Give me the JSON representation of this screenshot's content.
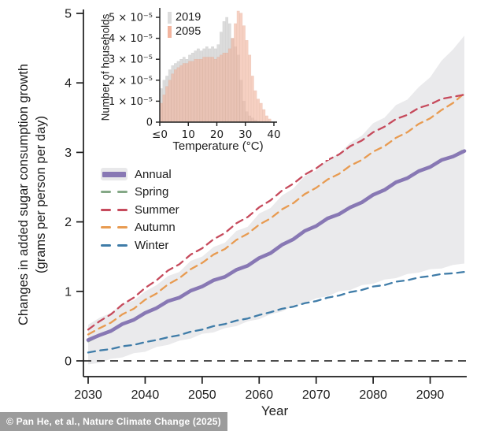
{
  "figure": {
    "credit": "© Pan He, et al., Nature Climate Change (2025)"
  },
  "chart_data": {
    "type": "line",
    "xlabel": "Year",
    "ylabel_line1": "Changes in added sugar consumption growth",
    "ylabel_line2": "(grams per person per day)",
    "x_ticks": [
      2030,
      2040,
      2050,
      2060,
      2070,
      2080,
      2090
    ],
    "y_ticks": [
      0,
      1,
      2,
      3,
      4,
      5
    ],
    "xlim": [
      2029,
      2096
    ],
    "ylim": [
      -0.25,
      5.1
    ],
    "zero_line": 0,
    "grid": false,
    "legend_position": "upper-left-inside",
    "years": [
      2030,
      2032,
      2034,
      2036,
      2038,
      2040,
      2042,
      2044,
      2046,
      2048,
      2050,
      2052,
      2054,
      2056,
      2058,
      2060,
      2062,
      2064,
      2066,
      2068,
      2070,
      2072,
      2074,
      2076,
      2078,
      2080,
      2082,
      2084,
      2086,
      2088,
      2090,
      2092,
      2094,
      2096
    ],
    "band": {
      "name": "Annual uncertainty range",
      "color": "#e8e8ea",
      "upper": [
        0.52,
        0.62,
        0.69,
        0.82,
        0.87,
        1.0,
        1.09,
        1.22,
        1.28,
        1.44,
        1.5,
        1.64,
        1.7,
        1.87,
        1.93,
        2.12,
        2.2,
        2.38,
        2.48,
        2.66,
        2.74,
        2.9,
        2.98,
        3.14,
        3.24,
        3.42,
        3.5,
        3.68,
        3.76,
        3.94,
        4.08,
        4.32,
        4.48,
        4.68
      ],
      "lower": [
        -0.05,
        -0.03,
        0.03,
        0.05,
        0.11,
        0.13,
        0.2,
        0.23,
        0.29,
        0.32,
        0.39,
        0.41,
        0.47,
        0.5,
        0.57,
        0.6,
        0.67,
        0.71,
        0.79,
        0.83,
        0.9,
        0.93,
        1.0,
        1.02,
        1.09,
        1.11,
        1.17,
        1.19,
        1.25,
        1.27,
        1.32,
        1.33,
        1.38,
        1.4
      ]
    },
    "series": [
      {
        "name": "Annual",
        "style": "solid",
        "color": "#8878b4",
        "values": [
          0.3,
          0.37,
          0.43,
          0.53,
          0.59,
          0.69,
          0.76,
          0.86,
          0.91,
          1.01,
          1.07,
          1.16,
          1.21,
          1.31,
          1.37,
          1.48,
          1.55,
          1.67,
          1.75,
          1.87,
          1.94,
          2.05,
          2.11,
          2.21,
          2.28,
          2.39,
          2.46,
          2.57,
          2.63,
          2.73,
          2.79,
          2.89,
          2.94,
          3.02
        ]
      },
      {
        "name": "Spring",
        "style": "dashed",
        "color": "#84a886",
        "values": [
          0.28,
          0.36,
          0.42,
          0.52,
          0.58,
          0.68,
          0.75,
          0.85,
          0.9,
          1.0,
          1.06,
          1.15,
          1.2,
          1.3,
          1.36,
          1.47,
          1.54,
          1.66,
          1.74,
          1.86,
          1.93,
          2.04,
          2.1,
          2.2,
          2.27,
          2.38,
          2.45,
          2.56,
          2.62,
          2.72,
          2.78,
          2.88,
          2.95,
          3.04
        ]
      },
      {
        "name": "Summer",
        "style": "dashed",
        "color": "#c64a5c",
        "values": [
          0.45,
          0.57,
          0.67,
          0.81,
          0.91,
          1.05,
          1.16,
          1.3,
          1.39,
          1.53,
          1.62,
          1.75,
          1.84,
          1.98,
          2.07,
          2.21,
          2.31,
          2.45,
          2.55,
          2.68,
          2.77,
          2.89,
          2.97,
          3.09,
          3.17,
          3.29,
          3.37,
          3.48,
          3.54,
          3.64,
          3.69,
          3.77,
          3.8,
          3.83
        ]
      },
      {
        "name": "Autumn",
        "style": "dashed",
        "color": "#e89b51",
        "values": [
          0.38,
          0.47,
          0.55,
          0.67,
          0.75,
          0.88,
          0.97,
          1.1,
          1.19,
          1.32,
          1.41,
          1.53,
          1.61,
          1.74,
          1.83,
          1.96,
          2.05,
          2.18,
          2.27,
          2.4,
          2.49,
          2.61,
          2.69,
          2.81,
          2.89,
          3.01,
          3.09,
          3.21,
          3.29,
          3.41,
          3.49,
          3.61,
          3.71,
          3.85
        ]
      },
      {
        "name": "Winter",
        "style": "dashed",
        "color": "#3f7ca8",
        "values": [
          0.12,
          0.15,
          0.17,
          0.21,
          0.23,
          0.27,
          0.3,
          0.34,
          0.37,
          0.42,
          0.45,
          0.5,
          0.53,
          0.58,
          0.61,
          0.66,
          0.7,
          0.75,
          0.78,
          0.83,
          0.86,
          0.91,
          0.94,
          0.99,
          1.02,
          1.07,
          1.09,
          1.14,
          1.16,
          1.2,
          1.22,
          1.25,
          1.26,
          1.28
        ]
      }
    ],
    "inset": {
      "type": "bar",
      "xlabel": "Temperature (°C)",
      "ylabel": "Number of households",
      "x_tick_values": [
        0,
        10,
        20,
        30,
        40
      ],
      "x_tick_labels": [
        "≤0",
        "10",
        "20",
        "30",
        "40"
      ],
      "y_tick_values": [
        0,
        1,
        2,
        3,
        4,
        5
      ],
      "y_tick_labels": [
        "0",
        "1 × 10⁻⁵",
        "2 × 10⁻⁵",
        "3 × 10⁻⁵",
        "4 × 10⁻⁵",
        "5 × 10⁻⁵"
      ],
      "y_unit": "1e-5",
      "bin_start_celsius": 0,
      "bin_width_celsius": 1,
      "series": [
        {
          "name": "2019",
          "color": "#dcdcdc",
          "values": [
            1.6,
            2.0,
            2.2,
            2.5,
            2.7,
            2.8,
            2.9,
            3.0,
            3.1,
            3.0,
            3.2,
            3.3,
            3.4,
            3.5,
            3.4,
            3.5,
            3.6,
            3.5,
            3.6,
            3.5,
            3.7,
            4.3,
            4.8,
            5.0,
            4.7,
            4.0,
            3.6,
            3.2,
            2.0,
            1.0,
            0.5,
            0.3,
            0.2,
            0.1,
            0.05,
            0,
            0,
            0,
            0
          ]
        },
        {
          "name": "2095",
          "color": "#f2b49e",
          "values": [
            0.9,
            1.3,
            1.7,
            2.0,
            2.3,
            2.5,
            2.6,
            2.7,
            2.8,
            2.8,
            2.9,
            2.9,
            3.0,
            3.0,
            3.0,
            3.1,
            3.1,
            3.1,
            3.1,
            3.0,
            3.1,
            3.2,
            3.3,
            3.3,
            3.5,
            4.0,
            4.7,
            5.3,
            5.2,
            4.6,
            3.9,
            3.2,
            2.2,
            1.5,
            1.1,
            0.9,
            0.6,
            0.3,
            0.15
          ]
        }
      ]
    }
  }
}
